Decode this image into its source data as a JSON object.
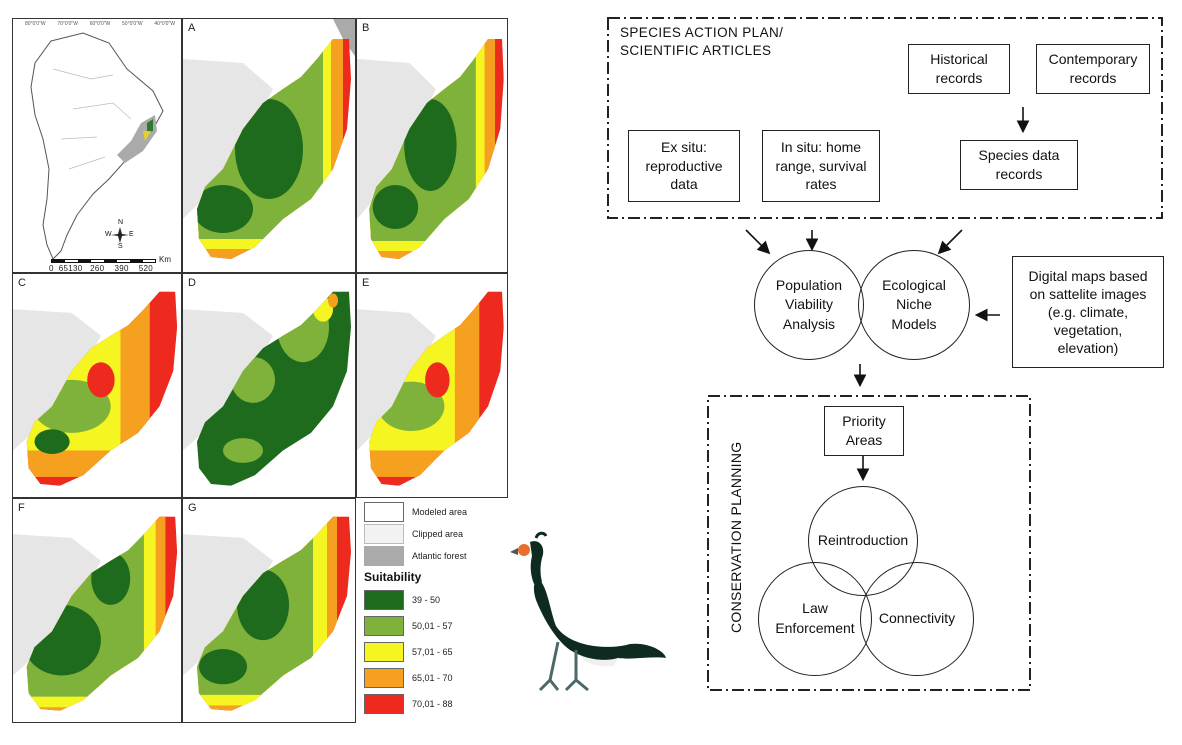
{
  "maps": {
    "panels": [
      "A",
      "B",
      "C",
      "D",
      "E",
      "F",
      "G"
    ],
    "inset": {
      "top_ticks": [
        "80°0'0\"W",
        "70°0'0\"W",
        "60°0'0\"W",
        "50°0'0\"W",
        "40°0'0\"W"
      ],
      "scale_labels": "0  65130   260    390    520",
      "scale_unit": "Km",
      "compass": [
        "N",
        "S",
        "E",
        "W"
      ]
    },
    "legend": {
      "areas": [
        "Modeled area",
        "Clipped area",
        "Atlantic forest"
      ],
      "title": "Suitability",
      "classes": [
        {
          "label": "39 - 50",
          "color": "#1e6b1e"
        },
        {
          "label": "50,01 - 57",
          "color": "#7fb23a"
        },
        {
          "label": "57,01 - 65",
          "color": "#f5f522"
        },
        {
          "label": "65,01 - 70",
          "color": "#f5a01e"
        },
        {
          "label": "70,01 - 88",
          "color": "#ee2a1e"
        }
      ]
    }
  },
  "diagram": {
    "top_header": [
      "SPECIES  ACTION  PLAN/",
      "SCIENTIFIC ARTICLES"
    ],
    "historical": [
      "Historical",
      "records"
    ],
    "contemporary": [
      "Contemporary",
      "records"
    ],
    "ex_situ": [
      "Ex situ:",
      "reproductive",
      "data"
    ],
    "in_situ": [
      "In situ: home",
      "range, survival",
      "rates"
    ],
    "species_data": [
      "Species data",
      "records"
    ],
    "pva": [
      "Population",
      "Viability",
      "Analysis"
    ],
    "enm": [
      "Ecological",
      "Niche",
      "Models"
    ],
    "digital_maps": [
      "Digital maps based",
      "on sattelite images",
      "(e.g. climate,",
      "vegetation,",
      "elevation)"
    ],
    "conservation_label": "CONSERVATION PLANNING",
    "priority": [
      "Priority",
      "Areas"
    ],
    "reintroduction": "Reintroduction",
    "law": [
      "Law",
      "Enforcement"
    ],
    "connectivity": "Connectivity"
  }
}
